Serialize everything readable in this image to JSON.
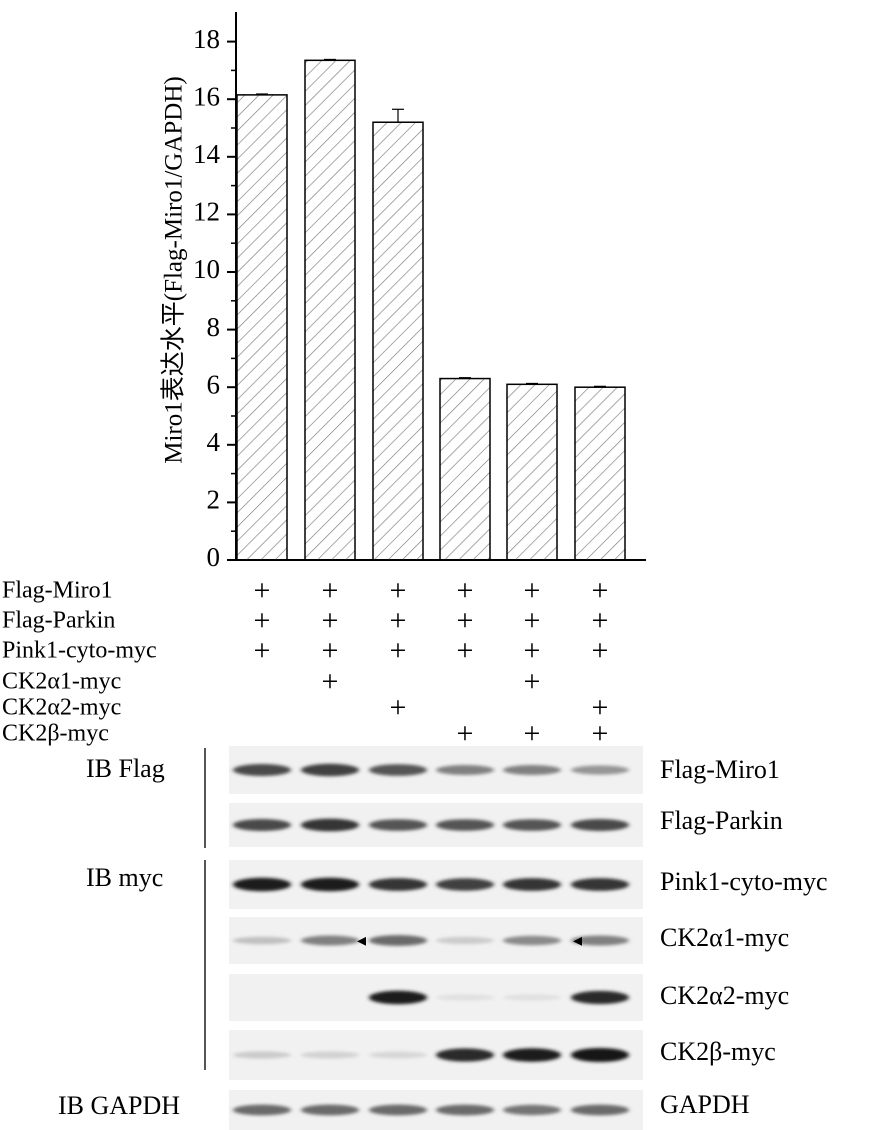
{
  "chart_data": {
    "type": "bar",
    "ylabel": "Miro1表达水平(Flag-Miro1/GAPDH)",
    "ylim": [
      0,
      19
    ],
    "yticks": [
      0,
      2,
      4,
      6,
      8,
      10,
      12,
      14,
      16,
      18
    ],
    "pattern": "diagonal-hatch",
    "bar_color": "#ffffff",
    "bar_edge_color": "#000000",
    "values": [
      16.15,
      17.35,
      15.2,
      6.3,
      6.1,
      6.0
    ],
    "errors": [
      0.03,
      0.03,
      0.45,
      0.03,
      0.03,
      0.03
    ]
  },
  "conditions": {
    "rows": [
      {
        "label": "Flag-Miro1",
        "marks": [
          "+",
          "+",
          "+",
          "+",
          "+",
          "+"
        ]
      },
      {
        "label": "Flag-Parkin",
        "marks": [
          "+",
          "+",
          "+",
          "+",
          "+",
          "+"
        ]
      },
      {
        "label": "Pink1-cyto-myc",
        "marks": [
          "+",
          "+",
          "+",
          "+",
          "+",
          "+"
        ]
      },
      {
        "label": "CK2α1-myc",
        "marks": [
          "",
          "+",
          "",
          "",
          "+",
          ""
        ]
      },
      {
        "label": "CK2α2-myc",
        "marks": [
          "",
          "",
          "+",
          "",
          "",
          "+"
        ]
      },
      {
        "label": "CK2β-myc",
        "marks": [
          "",
          "",
          "",
          "+",
          "+",
          "+"
        ]
      }
    ]
  },
  "blots": {
    "ib_groups": [
      "IB Flag",
      "IB myc",
      "IB GAPDH"
    ],
    "panels": [
      {
        "label": "Flag-Miro1",
        "intensity": [
          0.75,
          0.8,
          0.7,
          0.5,
          0.5,
          0.4
        ]
      },
      {
        "label": "Flag-Parkin",
        "intensity": [
          0.75,
          0.85,
          0.7,
          0.7,
          0.7,
          0.75
        ]
      },
      {
        "label": "Pink1-cyto-myc",
        "intensity": [
          0.95,
          0.95,
          0.85,
          0.8,
          0.85,
          0.85
        ]
      },
      {
        "label": "CK2α1-myc",
        "intensity": [
          0.2,
          0.5,
          0.6,
          0.15,
          0.45,
          0.5
        ]
      },
      {
        "label": "CK2α2-myc",
        "intensity": [
          0,
          0,
          0.95,
          0.05,
          0.05,
          0.9
        ]
      },
      {
        "label": "CK2β-myc",
        "intensity": [
          0.15,
          0.12,
          0.1,
          0.9,
          0.95,
          1.0
        ]
      },
      {
        "label": "GAPDH",
        "intensity": [
          0.6,
          0.6,
          0.6,
          0.6,
          0.55,
          0.6
        ]
      }
    ]
  }
}
